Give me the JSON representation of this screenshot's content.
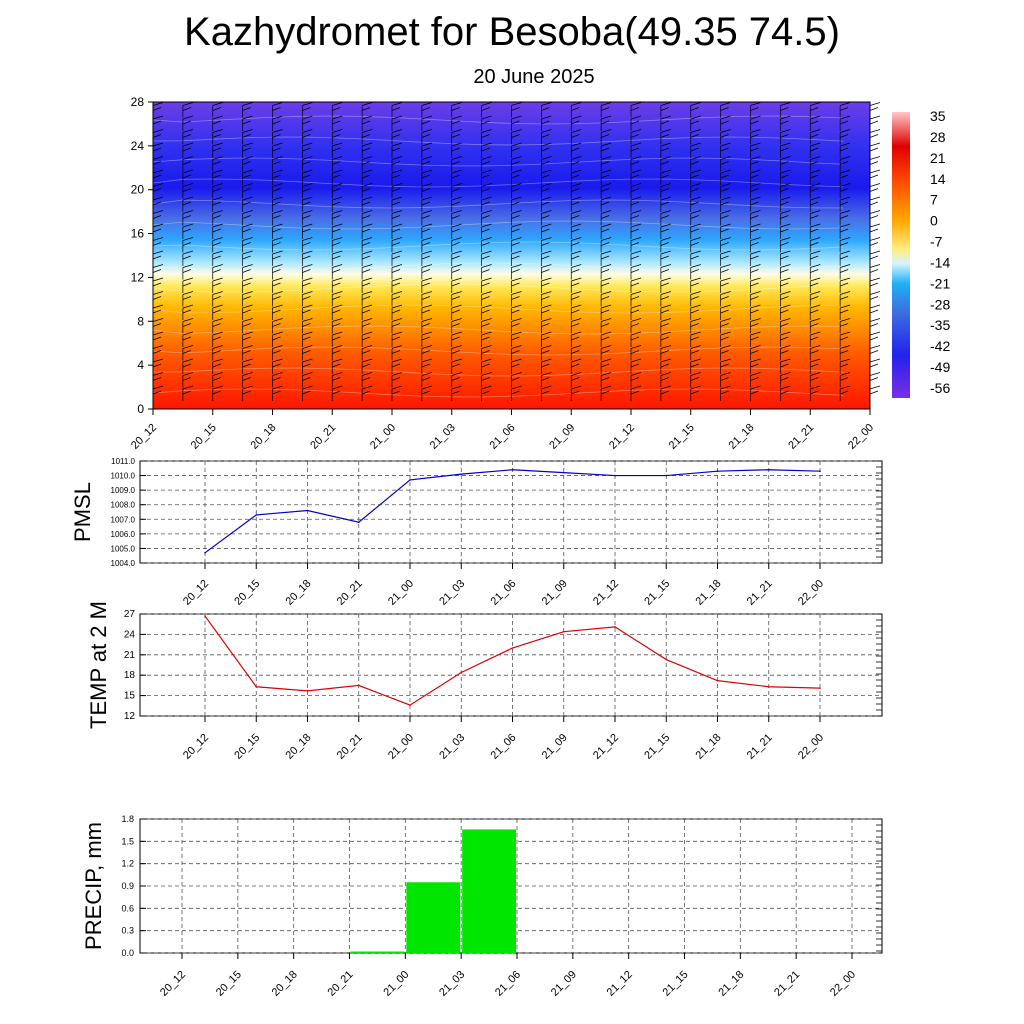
{
  "title": "Kazhydromet for Besoba(49.35 74.5)",
  "subtitle": "20 June 2025",
  "colors": {
    "pmsl_line": "#0000cc",
    "temp_line": "#e00000",
    "precip_bar": "#00e600",
    "wind_barb": "#000000"
  },
  "chart_data": [
    {
      "type": "heatmap",
      "name": "upper-air-temperature-and-wind",
      "x_ticks": [
        "20_12",
        "20_15",
        "20_18",
        "20_21",
        "21_00",
        "21_03",
        "21_06",
        "21_09",
        "21_12",
        "21_15",
        "21_18",
        "21_21",
        "22_00"
      ],
      "y_ticks": [
        "0",
        "4",
        "8",
        "12",
        "16",
        "20",
        "24",
        "28"
      ],
      "ylim": [
        0,
        28
      ],
      "colorbar_labels": [
        "35",
        "28",
        "21",
        "14",
        "7",
        "0",
        "-7",
        "-14",
        "-21",
        "-28",
        "-35",
        "-42",
        "-49",
        "-56"
      ],
      "colorbar_range": [
        -63,
        42
      ],
      "wind_barbs": "per level and time, mostly westerly",
      "grid": false
    },
    {
      "type": "line",
      "name": "pmsl",
      "ylabel": "PMSL",
      "x_ticks": [
        "20_12",
        "20_15",
        "20_18",
        "20_21",
        "21_00",
        "21_03",
        "21_06",
        "21_09",
        "21_12",
        "21_15",
        "21_18",
        "21_21",
        "22_00"
      ],
      "y_ticks": [
        "1004.0",
        "1005.0",
        "1006.0",
        "1007.0",
        "1008.0",
        "1009.0",
        "1010.0",
        "1011.0"
      ],
      "ylim": [
        1004.0,
        1011.0
      ],
      "series": [
        {
          "values": [
            1004.7,
            1007.3,
            1007.6,
            1006.8,
            1009.7,
            1010.1,
            1010.4,
            1010.2,
            1010.0,
            1010.0,
            1010.3,
            1010.4,
            1010.3
          ]
        }
      ],
      "grid": true
    },
    {
      "type": "line",
      "name": "temp-2m",
      "ylabel": "TEMP at 2 M",
      "x_ticks": [
        "20_12",
        "20_15",
        "20_18",
        "20_21",
        "21_00",
        "21_03",
        "21_06",
        "21_09",
        "21_12",
        "21_15",
        "21_18",
        "21_21",
        "22_00"
      ],
      "y_ticks": [
        "12",
        "15",
        "18",
        "21",
        "24",
        "27"
      ],
      "ylim": [
        12,
        27
      ],
      "series": [
        {
          "values": [
            26.7,
            16.3,
            15.7,
            16.5,
            13.6,
            18.4,
            22.0,
            24.4,
            25.1,
            20.3,
            17.2,
            16.3,
            16.1
          ]
        }
      ],
      "grid": true
    },
    {
      "type": "bar",
      "name": "precip",
      "ylabel": "PRECIP, mm",
      "x_ticks": [
        "20_12",
        "20_15",
        "20_18",
        "20_21",
        "21_00",
        "21_03",
        "21_06",
        "21_09",
        "21_12",
        "21_15",
        "21_18",
        "21_21",
        "22_00"
      ],
      "y_ticks": [
        "0.0",
        "0.3",
        "0.6",
        "0.9",
        "1.2",
        "1.5",
        "1.8"
      ],
      "ylim": [
        0,
        1.8
      ],
      "values": [
        0,
        0,
        0,
        0,
        0.02,
        0.95,
        1.66,
        0,
        0,
        0,
        0,
        0,
        0
      ],
      "grid": true
    }
  ]
}
